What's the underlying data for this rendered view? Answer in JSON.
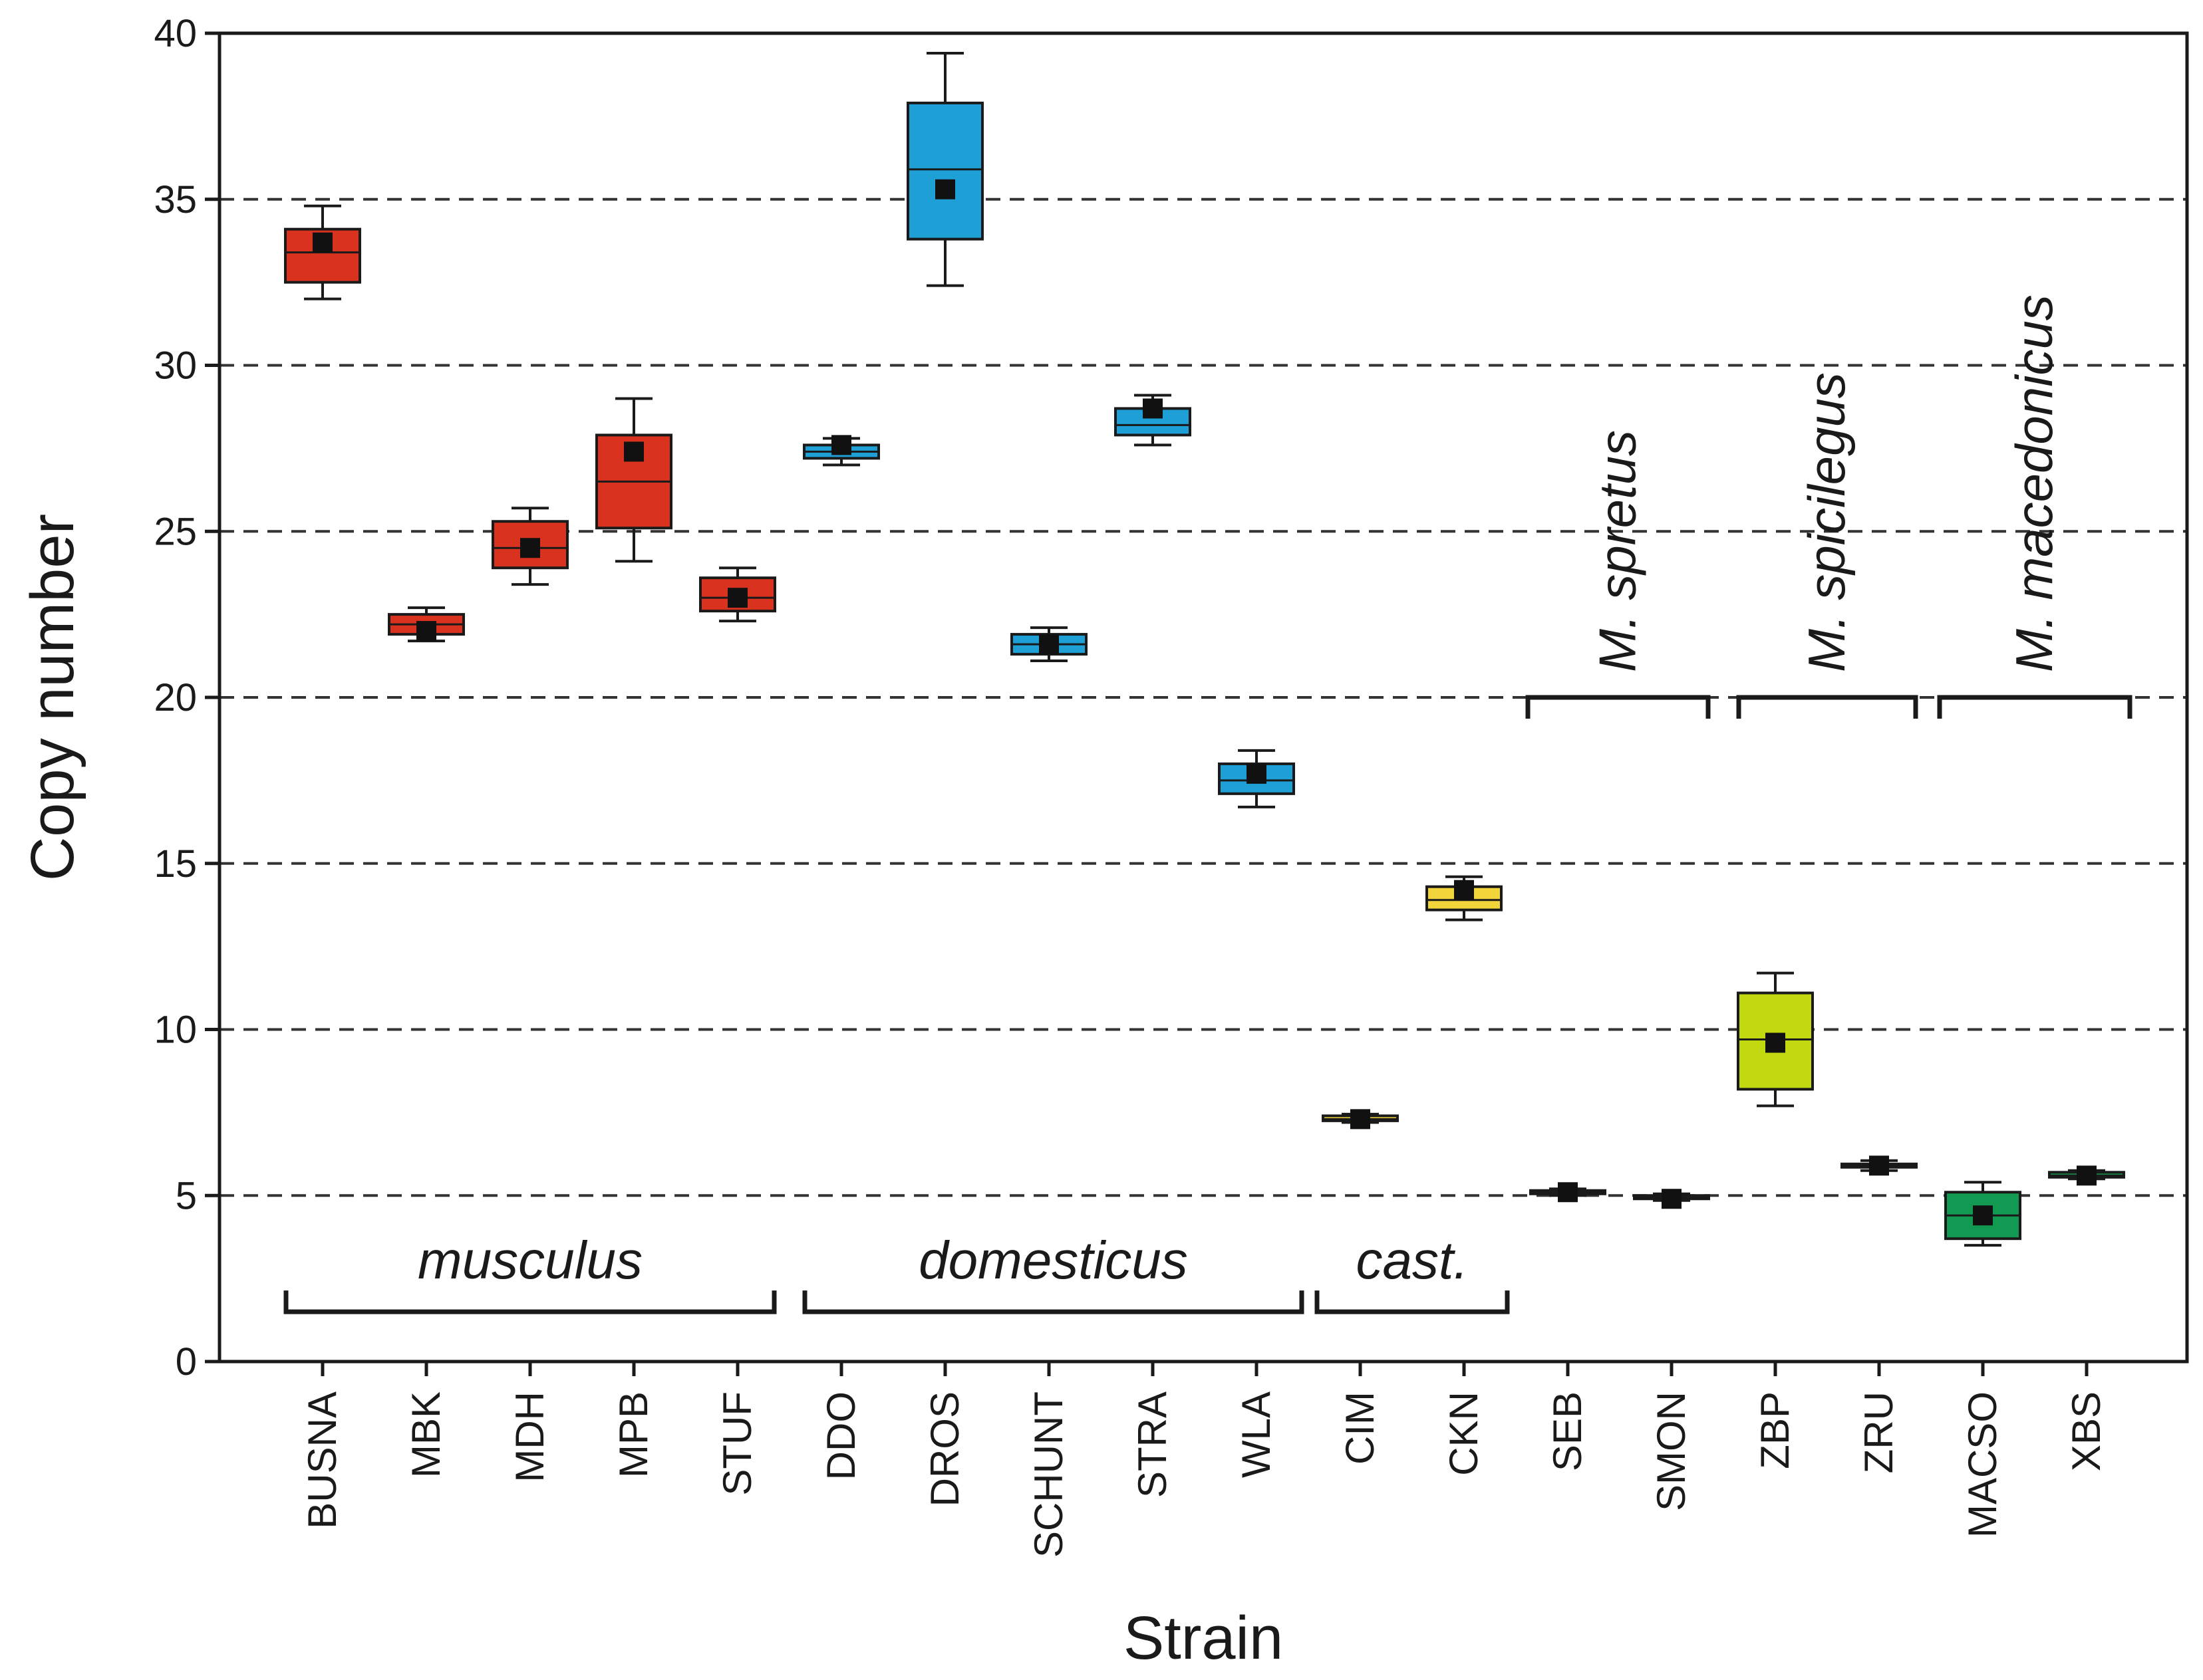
{
  "chart_data": {
    "type": "box",
    "title": "",
    "xlabel": "Strain",
    "ylabel": "Copy number",
    "ylim": [
      0,
      40
    ],
    "yticks": [
      0,
      5,
      10,
      15,
      20,
      25,
      30,
      35,
      40
    ],
    "grid": "horizontal dashed",
    "colors": {
      "musculus": "#d9331f",
      "domesticus": "#1e9fd6",
      "castaneus": "#f2d53a",
      "spretus": "#111111",
      "spicilegus": "#c2d90f",
      "macedonicus": "#129a52"
    },
    "groups": [
      {
        "name": "musculus",
        "label": "musculus",
        "strains": [
          "BUSNA",
          "MBK",
          "MDH",
          "MPB",
          "STUF"
        ]
      },
      {
        "name": "domesticus",
        "label": "domesticus",
        "strains": [
          "DDO",
          "DROS",
          "SCHUNT",
          "STRA",
          "WLA"
        ]
      },
      {
        "name": "castaneus",
        "label": "cast.",
        "strains": [
          "CIM",
          "CKN"
        ]
      },
      {
        "name": "spretus",
        "label": "M. spretus",
        "strains": [
          "SEB",
          "SMON"
        ]
      },
      {
        "name": "spicilegus",
        "label": "M. spicilegus",
        "strains": [
          "ZBP",
          "ZRU"
        ]
      },
      {
        "name": "macedonicus",
        "label": "M. macedonicus",
        "strains": [
          "MACSO",
          "XBS"
        ]
      }
    ],
    "series": [
      {
        "strain": "BUSNA",
        "group": "musculus",
        "min": 32.0,
        "q1": 32.5,
        "median": 33.4,
        "q3": 34.1,
        "max": 34.8,
        "mean": 33.7
      },
      {
        "strain": "MBK",
        "group": "musculus",
        "min": 21.7,
        "q1": 21.9,
        "median": 22.2,
        "q3": 22.5,
        "max": 22.7,
        "mean": 22.0
      },
      {
        "strain": "MDH",
        "group": "musculus",
        "min": 23.4,
        "q1": 23.9,
        "median": 24.5,
        "q3": 25.3,
        "max": 25.7,
        "mean": 24.5
      },
      {
        "strain": "MPB",
        "group": "musculus",
        "min": 24.1,
        "q1": 25.1,
        "median": 26.5,
        "q3": 27.9,
        "max": 29.0,
        "mean": 27.4
      },
      {
        "strain": "STUF",
        "group": "musculus",
        "min": 22.3,
        "q1": 22.6,
        "median": 23.0,
        "q3": 23.6,
        "max": 23.9,
        "mean": 23.0
      },
      {
        "strain": "DDO",
        "group": "domesticus",
        "min": 27.0,
        "q1": 27.2,
        "median": 27.4,
        "q3": 27.6,
        "max": 27.8,
        "mean": 27.6
      },
      {
        "strain": "DROS",
        "group": "domesticus",
        "min": 32.4,
        "q1": 33.8,
        "median": 35.9,
        "q3": 37.9,
        "max": 39.4,
        "mean": 35.3
      },
      {
        "strain": "SCHUNT",
        "group": "domesticus",
        "min": 21.1,
        "q1": 21.3,
        "median": 21.6,
        "q3": 21.9,
        "max": 22.1,
        "mean": 21.6
      },
      {
        "strain": "STRA",
        "group": "domesticus",
        "min": 27.6,
        "q1": 27.9,
        "median": 28.2,
        "q3": 28.7,
        "max": 29.1,
        "mean": 28.7
      },
      {
        "strain": "WLA",
        "group": "domesticus",
        "min": 16.7,
        "q1": 17.1,
        "median": 17.5,
        "q3": 18.0,
        "max": 18.4,
        "mean": 17.7
      },
      {
        "strain": "CIM",
        "group": "castaneus",
        "min": 7.2,
        "q1": 7.25,
        "median": 7.3,
        "q3": 7.4,
        "max": 7.45,
        "mean": 7.3
      },
      {
        "strain": "CKN",
        "group": "castaneus",
        "min": 13.3,
        "q1": 13.6,
        "median": 13.9,
        "q3": 14.3,
        "max": 14.6,
        "mean": 14.2
      },
      {
        "strain": "SEB",
        "group": "spretus",
        "min": 5.0,
        "q1": 5.05,
        "median": 5.1,
        "q3": 5.15,
        "max": 5.2,
        "mean": 5.1
      },
      {
        "strain": "SMON",
        "group": "spretus",
        "min": 4.85,
        "q1": 4.9,
        "median": 4.95,
        "q3": 5.0,
        "max": 5.05,
        "mean": 4.9
      },
      {
        "strain": "ZBP",
        "group": "spicilegus",
        "min": 7.7,
        "q1": 8.2,
        "median": 9.7,
        "q3": 11.1,
        "max": 11.7,
        "mean": 9.6
      },
      {
        "strain": "ZRU",
        "group": "spicilegus",
        "min": 5.75,
        "q1": 5.85,
        "median": 5.9,
        "q3": 5.95,
        "max": 6.05,
        "mean": 5.9
      },
      {
        "strain": "MACSO",
        "group": "macedonicus",
        "min": 3.5,
        "q1": 3.7,
        "median": 4.4,
        "q3": 5.1,
        "max": 5.4,
        "mean": 4.4
      },
      {
        "strain": "XBS",
        "group": "macedonicus",
        "min": 5.5,
        "q1": 5.55,
        "median": 5.6,
        "q3": 5.7,
        "max": 5.75,
        "mean": 5.6
      }
    ]
  }
}
